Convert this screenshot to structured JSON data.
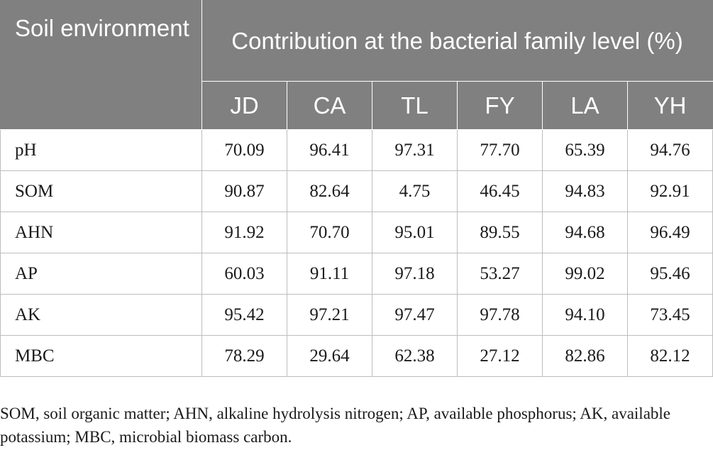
{
  "table": {
    "corner_header": "Soil environment",
    "group_header": "Contribution at the bacterial family level (%)",
    "columns": [
      "JD",
      "CA",
      "TL",
      "FY",
      "LA",
      "YH"
    ],
    "rows": [
      {
        "label": "pH",
        "values": [
          "70.09",
          "96.41",
          "97.31",
          "77.70",
          "65.39",
          "94.76"
        ]
      },
      {
        "label": "SOM",
        "values": [
          "90.87",
          "82.64",
          "4.75",
          "46.45",
          "94.83",
          "92.91"
        ]
      },
      {
        "label": "AHN",
        "values": [
          "91.92",
          "70.70",
          "95.01",
          "89.55",
          "94.68",
          "96.49"
        ]
      },
      {
        "label": "AP",
        "values": [
          "60.03",
          "91.11",
          "97.18",
          "53.27",
          "99.02",
          "95.46"
        ]
      },
      {
        "label": "AK",
        "values": [
          "95.42",
          "97.21",
          "97.47",
          "97.78",
          "94.10",
          "73.45"
        ]
      },
      {
        "label": "MBC",
        "values": [
          "78.29",
          "29.64",
          "62.38",
          "27.12",
          "82.86",
          "82.12"
        ]
      }
    ]
  },
  "footnote": "SOM, soil organic matter; AHN, alkaline hydrolysis nitrogen; AP, available phosphorus; AK, available potassium; MBC, microbial biomass carbon."
}
